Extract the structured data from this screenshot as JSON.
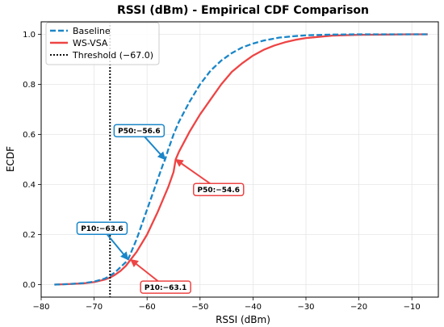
{
  "chart_data": {
    "type": "line",
    "title": "RSSI (dBm) - Empirical CDF Comparison",
    "xlabel": "RSSI (dBm)",
    "ylabel": "ECDF",
    "xlim": [
      -80,
      -5
    ],
    "ylim": [
      -0.05,
      1.05
    ],
    "xticks": [
      -80,
      -70,
      -60,
      -50,
      -40,
      -30,
      -20,
      -10
    ],
    "xtick_labels": [
      "−80",
      "−70",
      "−60",
      "−50",
      "−40",
      "−30",
      "−20",
      "−10"
    ],
    "yticks": [
      0.0,
      0.2,
      0.4,
      0.6,
      0.8,
      1.0
    ],
    "ytick_labels": [
      "0.0",
      "0.2",
      "0.4",
      "0.6",
      "0.8",
      "1.0"
    ],
    "grid": true,
    "legend_position": "top-left",
    "series": [
      {
        "name": "Baseline",
        "style": "dashed",
        "color": "#1a86c8",
        "x": [
          -77.5,
          -75,
          -72,
          -70,
          -68,
          -67,
          -66,
          -65,
          -64,
          -63.6,
          -63,
          -62,
          -61,
          -60,
          -59,
          -58,
          -57,
          -56.6,
          -56,
          -55,
          -54,
          -52,
          -50,
          -48,
          -46,
          -44,
          -42,
          -40,
          -38,
          -35,
          -32,
          -30,
          -25,
          -20,
          -15,
          -10,
          -7
        ],
        "y": [
          0.0,
          0.002,
          0.006,
          0.012,
          0.024,
          0.035,
          0.05,
          0.07,
          0.09,
          0.1,
          0.13,
          0.18,
          0.24,
          0.3,
          0.36,
          0.42,
          0.48,
          0.5,
          0.54,
          0.6,
          0.65,
          0.73,
          0.8,
          0.855,
          0.895,
          0.925,
          0.948,
          0.963,
          0.975,
          0.987,
          0.993,
          0.996,
          0.999,
          1.0,
          1.0,
          1.0,
          1.0
        ]
      },
      {
        "name": "WS-VSA",
        "style": "solid",
        "color": "#ee4444",
        "x": [
          -77.5,
          -75,
          -72,
          -70,
          -68,
          -67,
          -66,
          -65,
          -64,
          -63.1,
          -62,
          -61,
          -60,
          -59,
          -58,
          -57,
          -56,
          -55,
          -54.6,
          -54,
          -52,
          -50,
          -48,
          -46,
          -44,
          -42,
          -40,
          -38,
          -36,
          -34,
          -32,
          -30,
          -25,
          -20,
          -15,
          -10,
          -7
        ],
        "y": [
          0.0,
          0.002,
          0.005,
          0.01,
          0.02,
          0.028,
          0.04,
          0.055,
          0.075,
          0.1,
          0.13,
          0.165,
          0.2,
          0.245,
          0.29,
          0.34,
          0.39,
          0.45,
          0.5,
          0.53,
          0.61,
          0.68,
          0.74,
          0.8,
          0.85,
          0.885,
          0.915,
          0.938,
          0.955,
          0.968,
          0.978,
          0.985,
          0.995,
          0.998,
          0.999,
          1.0,
          1.0
        ]
      }
    ],
    "threshold": {
      "name": "Threshold (−67.0)",
      "x": -67.0,
      "style": "dotted",
      "color": "#111111"
    },
    "annotations": [
      {
        "text": "P50:−56.6",
        "point": [
          -56.6,
          0.5
        ],
        "text_pos": [
          -61.5,
          0.615
        ],
        "color": "#1a86c8"
      },
      {
        "text": "P50:−54.6",
        "point": [
          -54.6,
          0.5
        ],
        "text_pos": [
          -46.5,
          0.38
        ],
        "color": "#ee4444"
      },
      {
        "text": "P10:−63.6",
        "point": [
          -63.6,
          0.1
        ],
        "text_pos": [
          -68.5,
          0.225
        ],
        "color": "#1a86c8"
      },
      {
        "text": "P10:−63.1",
        "point": [
          -63.1,
          0.1
        ],
        "text_pos": [
          -56.5,
          -0.01
        ],
        "color": "#ee4444"
      }
    ]
  }
}
